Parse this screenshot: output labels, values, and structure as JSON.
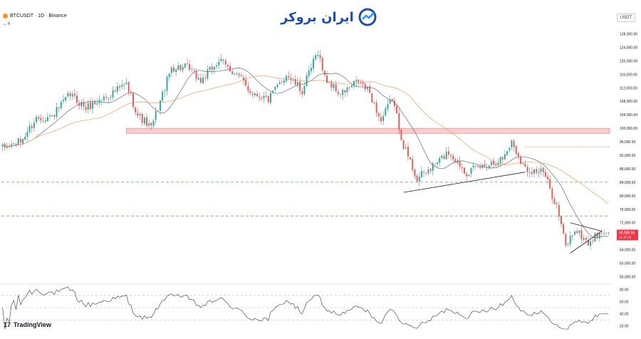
{
  "header": {
    "symbol": "BTCUSDT · 1D · Binance",
    "indicator": "6",
    "currency": "USDT",
    "brand": "ایران بروکر"
  },
  "footer": {
    "logo": "TradingView",
    "logo_mark": "17"
  },
  "price_label": {
    "price": "68,889.96",
    "countdown": "11:10:15"
  },
  "colors": {
    "up": "#26a69a",
    "down": "#ef5350",
    "ma_fast": "#787b86",
    "ma_slow": "#f7a86b",
    "zone": "#f6a5a5",
    "support": "#4caf50",
    "rsi": "#333333",
    "label_bg": "#f23645"
  },
  "chart_data": {
    "type": "candlestick",
    "symbol": "BTCUSDT",
    "timeframe": "1D",
    "exchange": "Binance",
    "price_axis": {
      "ticks": [
        56000,
        60000,
        64000,
        68000,
        72000,
        76000,
        80000,
        84000,
        88000,
        92000,
        96000,
        100000,
        104000,
        108000,
        112000,
        116000,
        120000,
        124000,
        128000
      ],
      "labels": [
        "56,000.00",
        "60,000.00",
        "64,000.00",
        "68,000.00",
        "72,000.00",
        "76,000.00",
        "80,000.00",
        "84,000.00",
        "88,000.00",
        "92,000.00",
        "96,000.00",
        "100,000.00",
        "104,000.00",
        "108,000.00",
        "112,000.00",
        "116,000.00",
        "120,000.00",
        "124,000.00",
        "128,000.00"
      ],
      "range": [
        54000,
        130000
      ]
    },
    "rsi_axis": {
      "ticks": [
        20,
        40,
        60,
        80
      ],
      "labels": [
        "20.00",
        "40.00",
        "60.00",
        "80.00"
      ],
      "range": [
        15,
        85
      ],
      "levels": [
        70,
        50,
        30
      ]
    },
    "last_price": 68889.96,
    "anchors": [
      [
        0,
        94000
      ],
      [
        8,
        96000
      ],
      [
        15,
        103000
      ],
      [
        22,
        103500
      ],
      [
        30,
        110000
      ],
      [
        37,
        106000
      ],
      [
        45,
        109000
      ],
      [
        55,
        113000
      ],
      [
        60,
        104000
      ],
      [
        66,
        100000
      ],
      [
        75,
        118000
      ],
      [
        82,
        118000
      ],
      [
        88,
        114000
      ],
      [
        96,
        120000
      ],
      [
        104,
        116000
      ],
      [
        110,
        111000
      ],
      [
        118,
        108500
      ],
      [
        126,
        116000
      ],
      [
        133,
        111000
      ],
      [
        140,
        123000
      ],
      [
        143,
        115000
      ],
      [
        150,
        110000
      ],
      [
        158,
        114000
      ],
      [
        163,
        110500
      ],
      [
        168,
        102000
      ],
      [
        173,
        109000
      ],
      [
        178,
        95000
      ],
      [
        184,
        85000
      ],
      [
        190,
        88000
      ],
      [
        198,
        93000
      ],
      [
        206,
        87000
      ],
      [
        214,
        89000
      ],
      [
        222,
        91000
      ],
      [
        226,
        96000
      ],
      [
        232,
        88000
      ],
      [
        240,
        87000
      ],
      [
        246,
        77000
      ],
      [
        250,
        65000
      ],
      [
        254,
        70000
      ],
      [
        260,
        66000
      ],
      [
        265,
        68889.96
      ]
    ],
    "zones": [
      {
        "from": 98500,
        "to": 100000,
        "label": ""
      }
    ],
    "support_levels": [
      84000,
      74000
    ],
    "trendlines": [
      {
        "from": [
          178,
          81000
        ],
        "to": [
          232,
          87000
        ]
      },
      {
        "from": [
          252,
          72000
        ],
        "to": [
          266,
          69500
        ]
      },
      {
        "from": [
          252,
          63000
        ],
        "to": [
          266,
          69500
        ]
      }
    ],
    "dotted_level": 94500
  }
}
